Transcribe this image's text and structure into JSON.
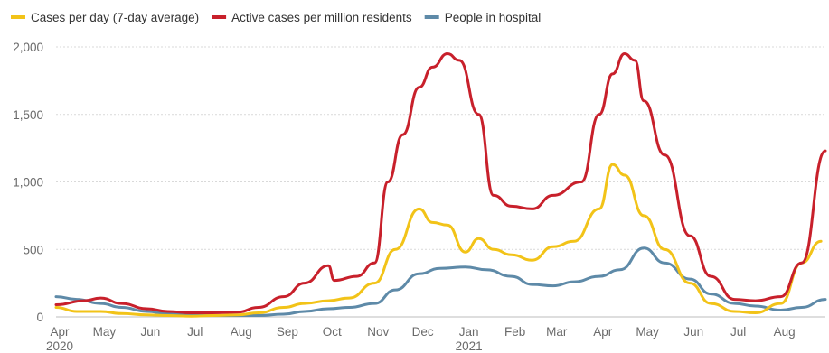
{
  "chart_data": {
    "type": "line",
    "title": "",
    "xlabel": "",
    "ylabel": "",
    "ylim": [
      0,
      2000
    ],
    "xlim": [
      "2020-04-01",
      "2021-08-31"
    ],
    "grid": true,
    "legend_position": "top-left",
    "y_ticks": [
      {
        "value": 0,
        "label": "0"
      },
      {
        "value": 500,
        "label": "500"
      },
      {
        "value": 1000,
        "label": "1,000"
      },
      {
        "value": 1500,
        "label": "1,500"
      },
      {
        "value": 2000,
        "label": "2,000"
      }
    ],
    "x_ticks": [
      {
        "date": "2020-04-01",
        "label": "Apr",
        "year": "2020"
      },
      {
        "date": "2020-05-01",
        "label": "May"
      },
      {
        "date": "2020-06-01",
        "label": "Jun"
      },
      {
        "date": "2020-07-01",
        "label": "Jul"
      },
      {
        "date": "2020-08-01",
        "label": "Aug"
      },
      {
        "date": "2020-09-01",
        "label": "Sep"
      },
      {
        "date": "2020-10-01",
        "label": "Oct"
      },
      {
        "date": "2020-11-01",
        "label": "Nov"
      },
      {
        "date": "2020-12-01",
        "label": "Dec"
      },
      {
        "date": "2021-01-01",
        "label": "Jan",
        "year": "2021"
      },
      {
        "date": "2021-02-01",
        "label": "Feb"
      },
      {
        "date": "2021-03-01",
        "label": "Mar"
      },
      {
        "date": "2021-04-01",
        "label": "Apr"
      },
      {
        "date": "2021-05-01",
        "label": "May"
      },
      {
        "date": "2021-06-01",
        "label": "Jun"
      },
      {
        "date": "2021-07-01",
        "label": "Jul"
      },
      {
        "date": "2021-08-01",
        "label": "Aug"
      }
    ],
    "series": [
      {
        "name": "Cases per day (7-day average)",
        "color": "#f2c318",
        "x": [
          "2020-04-01",
          "2020-04-15",
          "2020-05-01",
          "2020-05-15",
          "2020-06-01",
          "2020-06-15",
          "2020-07-01",
          "2020-07-15",
          "2020-08-01",
          "2020-08-15",
          "2020-09-01",
          "2020-09-15",
          "2020-10-01",
          "2020-10-15",
          "2020-11-01",
          "2020-11-15",
          "2020-12-01",
          "2020-12-10",
          "2020-12-20",
          "2021-01-01",
          "2021-01-10",
          "2021-01-20",
          "2021-02-01",
          "2021-02-15",
          "2021-03-01",
          "2021-03-15",
          "2021-04-01",
          "2021-04-10",
          "2021-04-18",
          "2021-05-01",
          "2021-05-15",
          "2021-06-01",
          "2021-06-15",
          "2021-07-01",
          "2021-07-15",
          "2021-08-01",
          "2021-08-15",
          "2021-08-28"
        ],
        "y": [
          70,
          40,
          40,
          25,
          15,
          10,
          5,
          10,
          15,
          30,
          70,
          100,
          120,
          140,
          250,
          500,
          800,
          700,
          680,
          480,
          580,
          500,
          460,
          420,
          520,
          560,
          800,
          1130,
          1050,
          750,
          500,
          250,
          100,
          40,
          30,
          100,
          400,
          560
        ]
      },
      {
        "name": "Active cases per million residents",
        "color": "#c8202b",
        "x": [
          "2020-04-01",
          "2020-04-20",
          "2020-05-01",
          "2020-05-15",
          "2020-06-01",
          "2020-06-15",
          "2020-07-01",
          "2020-07-15",
          "2020-08-01",
          "2020-08-15",
          "2020-09-01",
          "2020-09-15",
          "2020-10-01",
          "2020-10-05",
          "2020-10-20",
          "2020-11-01",
          "2020-11-10",
          "2020-11-20",
          "2020-12-01",
          "2020-12-10",
          "2020-12-20",
          "2020-12-28",
          "2021-01-10",
          "2021-01-20",
          "2021-02-01",
          "2021-02-15",
          "2021-03-01",
          "2021-03-20",
          "2021-04-01",
          "2021-04-10",
          "2021-04-18",
          "2021-04-25",
          "2021-05-01",
          "2021-05-15",
          "2021-06-01",
          "2021-06-15",
          "2021-07-01",
          "2021-07-15",
          "2021-08-01",
          "2021-08-15",
          "2021-08-31"
        ],
        "y": [
          90,
          120,
          140,
          100,
          60,
          40,
          30,
          30,
          35,
          70,
          150,
          250,
          380,
          270,
          300,
          400,
          1000,
          1350,
          1700,
          1850,
          1950,
          1900,
          1500,
          900,
          820,
          800,
          900,
          1000,
          1500,
          1800,
          1950,
          1900,
          1600,
          1200,
          600,
          300,
          130,
          120,
          150,
          400,
          1230
        ]
      },
      {
        "name": "People in hospital",
        "color": "#5e8aa8",
        "x": [
          "2020-04-01",
          "2020-04-15",
          "2020-05-01",
          "2020-05-15",
          "2020-06-01",
          "2020-06-15",
          "2020-07-01",
          "2020-07-15",
          "2020-08-01",
          "2020-08-15",
          "2020-09-01",
          "2020-09-15",
          "2020-10-01",
          "2020-10-15",
          "2020-11-01",
          "2020-11-15",
          "2020-12-01",
          "2020-12-15",
          "2021-01-01",
          "2021-01-15",
          "2021-02-01",
          "2021-02-15",
          "2021-03-01",
          "2021-03-15",
          "2021-04-01",
          "2021-04-15",
          "2021-05-01",
          "2021-05-15",
          "2021-06-01",
          "2021-06-15",
          "2021-07-01",
          "2021-07-15",
          "2021-08-01",
          "2021-08-15",
          "2021-08-31"
        ],
        "y": [
          150,
          130,
          100,
          70,
          40,
          25,
          15,
          10,
          10,
          10,
          20,
          40,
          60,
          70,
          100,
          200,
          320,
          360,
          370,
          350,
          300,
          240,
          230,
          260,
          300,
          350,
          510,
          400,
          280,
          170,
          100,
          80,
          50,
          70,
          130
        ]
      }
    ]
  }
}
